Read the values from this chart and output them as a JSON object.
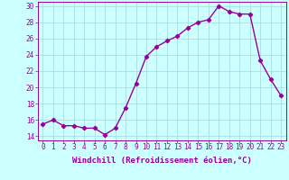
{
  "x": [
    0,
    1,
    2,
    3,
    4,
    5,
    6,
    7,
    8,
    9,
    10,
    11,
    12,
    13,
    14,
    15,
    16,
    17,
    18,
    19,
    20,
    21,
    22,
    23
  ],
  "y": [
    15.5,
    16.0,
    15.3,
    15.3,
    15.0,
    15.0,
    14.2,
    15.0,
    17.5,
    20.5,
    23.8,
    25.0,
    25.7,
    26.3,
    27.3,
    28.0,
    28.3,
    30.0,
    29.3,
    29.0,
    29.0,
    23.3,
    21.0,
    19.0
  ],
  "line_color": "#990099",
  "marker": "D",
  "markersize": 2.2,
  "bg_color": "#ccffff",
  "grid_color": "#aadddd",
  "xlabel": "Windchill (Refroidissement éolien,°C)",
  "xlabel_color": "#990099",
  "tick_color": "#990099",
  "ylim": [
    13.5,
    30.5
  ],
  "xlim": [
    -0.5,
    23.5
  ],
  "yticks": [
    14,
    16,
    18,
    20,
    22,
    24,
    26,
    28,
    30
  ],
  "xticks": [
    0,
    1,
    2,
    3,
    4,
    5,
    6,
    7,
    8,
    9,
    10,
    11,
    12,
    13,
    14,
    15,
    16,
    17,
    18,
    19,
    20,
    21,
    22,
    23
  ],
  "linewidth": 1.0,
  "xlabel_fontsize": 6.5,
  "tick_fontsize": 5.5
}
